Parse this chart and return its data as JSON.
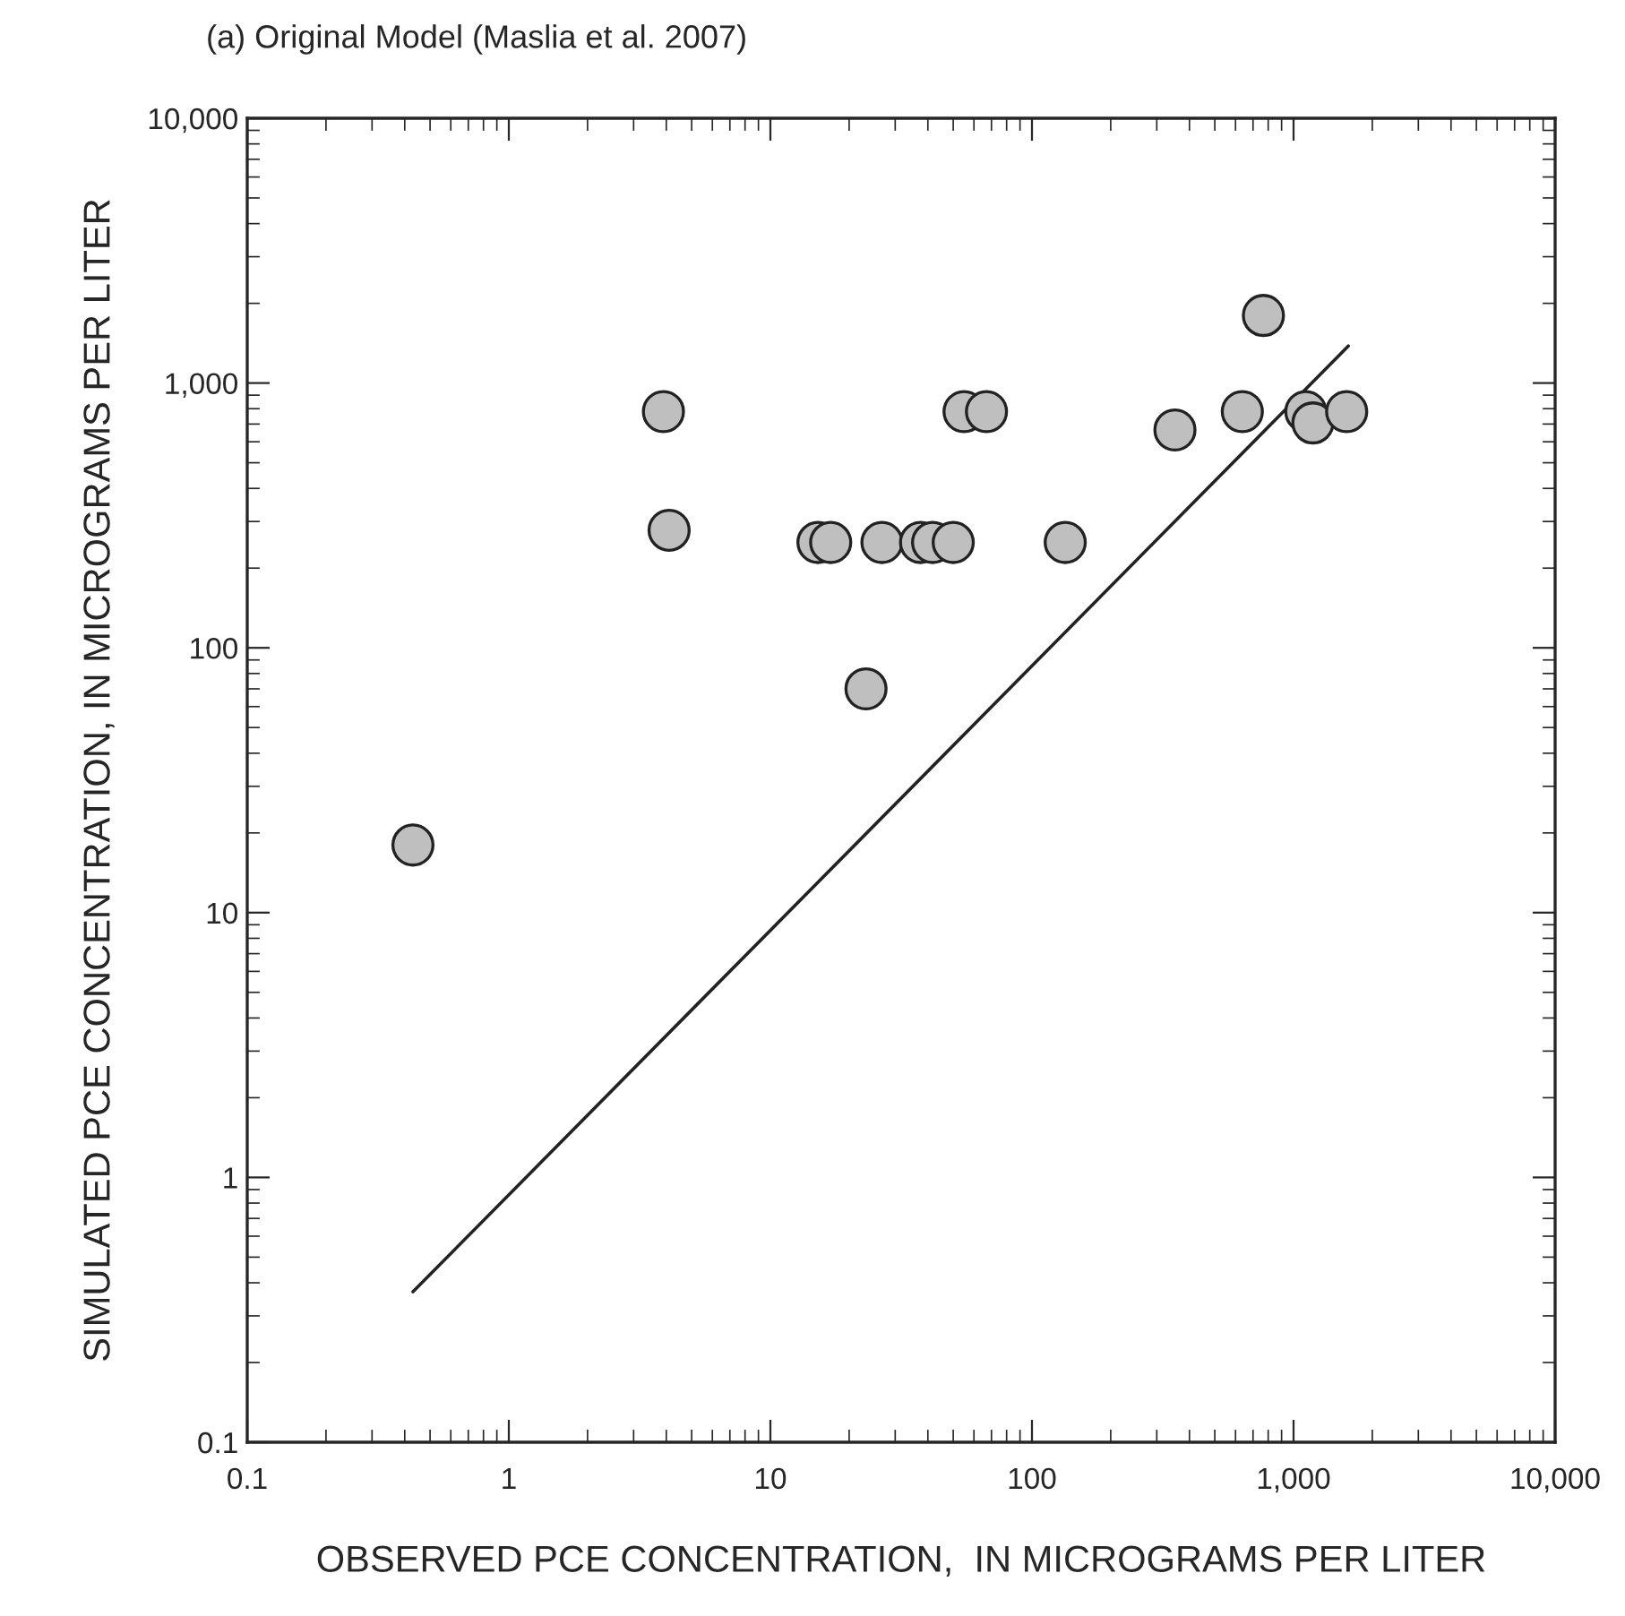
{
  "chart_data": {
    "type": "scatter",
    "title": "(a) Original Model (Maslia et al. 2007)",
    "xlabel": "OBSERVED PCE CONCENTRATION,  IN MICROGRAMS PER LITER",
    "ylabel": "SIMULATED PCE CONCENTRATION, IN MICROGRAMS PER LITER",
    "log": "xy",
    "grid": false,
    "xlim": [
      0.1,
      10000
    ],
    "ylim": [
      0.1,
      10000
    ],
    "xticks": [
      0.1,
      1,
      10,
      100,
      {
        "value": 1000,
        "label": "1,000"
      },
      {
        "value": 10000,
        "label": "10,000"
      }
    ],
    "yticks": [
      0.1,
      1,
      10,
      100,
      {
        "value": 1000,
        "label": "1,000"
      },
      {
        "value": 10000,
        "label": "10,000"
      }
    ],
    "series": [
      {
        "marker": "circle",
        "color": "#bfbfbf",
        "x": [
          0.43,
          3.9,
          4.1,
          15.2,
          17,
          23.2,
          26.7,
          37.5,
          41.7,
          50,
          55,
          67,
          134,
          352,
          637,
          767,
          1114,
          1186,
          1596
        ],
        "values": [
          18,
          780,
          278,
          250,
          250,
          70,
          250,
          250,
          250,
          250,
          780,
          780,
          250,
          665,
          780,
          1800,
          780,
          707,
          780
        ]
      },
      {
        "type": "line",
        "color": "#222222",
        "x": [
          0.43,
          1620
        ],
        "values": [
          0.37,
          1380
        ]
      }
    ]
  }
}
